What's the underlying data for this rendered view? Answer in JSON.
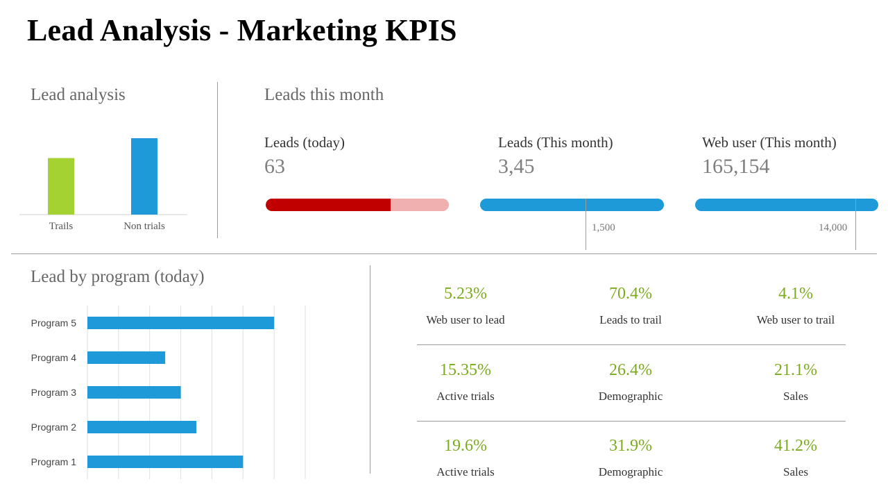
{
  "title": "Lead Analysis - Marketing KPIS",
  "lead_analysis": {
    "title": "Lead analysis"
  },
  "leads_this_month": {
    "title": "Leads this month",
    "kpis": [
      {
        "label": "Leads (today)",
        "value": "63",
        "progress": 0.68,
        "target_label": ""
      },
      {
        "label": "Leads (This month)",
        "value": "3,45",
        "progress": null,
        "target_label": "1,500",
        "target_position": 0.58
      },
      {
        "label": "Web user (This month)",
        "value": "165,154",
        "progress": null,
        "target_label": "14,000",
        "target_position": 0.88
      }
    ]
  },
  "lead_by_program": {
    "title": "Lead by program (today)"
  },
  "metrics": [
    {
      "value": "5.23%",
      "label": "Web user to lead"
    },
    {
      "value": "70.4%",
      "label": "Leads to trail"
    },
    {
      "value": "4.1%",
      "label": "Web user to trail"
    },
    {
      "value": "15.35%",
      "label": "Active trials"
    },
    {
      "value": "26.4%",
      "label": "Demographic"
    },
    {
      "value": "21.1%",
      "label": "Sales"
    },
    {
      "value": "19.6%",
      "label": "Active trials"
    },
    {
      "value": "31.9%",
      "label": "Demographic"
    },
    {
      "value": "41.2%",
      "label": "Sales"
    }
  ],
  "colors": {
    "green": "#a5d233",
    "blue": "#1f9ad8",
    "red": "#c00000",
    "red_light": "#f0b0b0",
    "metric_green": "#7cab1f"
  },
  "chart_data": [
    {
      "type": "bar",
      "title": "Lead analysis",
      "categories": [
        "Trails",
        "Non trials"
      ],
      "values": [
        74,
        100
      ],
      "ylim": [
        0,
        100
      ],
      "grid": false,
      "colors": [
        "#a5d233",
        "#1f9ad8"
      ]
    },
    {
      "type": "bar",
      "orientation": "horizontal",
      "title": "Lead by program (today)",
      "categories": [
        "Program 5",
        "Program 4",
        "Program 3",
        "Program 2",
        "Program 1"
      ],
      "values": [
        60,
        25,
        30,
        35,
        50
      ],
      "xlim": [
        0,
        70
      ],
      "grid": true
    }
  ]
}
